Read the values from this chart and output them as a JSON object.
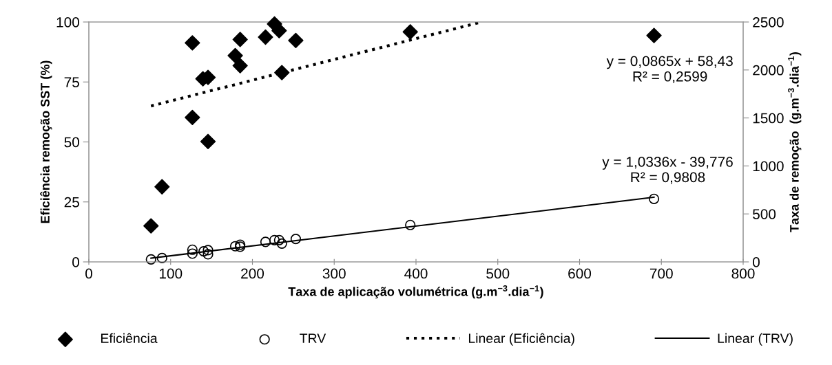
{
  "chart_data": {
    "type": "scatter",
    "xlabel": "Taxa de aplicação volumétrica (g.m$^{−3}$.dia$^{−1}$)",
    "ylabel": "Eficiência remoção SST (%)",
    "y2label": "Taxa de remoção  (g.m$^{−3}$.dia$^{−1}$)",
    "xlim": [
      0,
      800
    ],
    "xticks": [
      0,
      100,
      200,
      300,
      400,
      500,
      600,
      700,
      800
    ],
    "ylim": [
      0,
      100
    ],
    "yticks": [
      0,
      25,
      50,
      75,
      100
    ],
    "y2lim": [
      0,
      2500
    ],
    "y2ticks": [
      0,
      500,
      1000,
      1500,
      2000,
      2500
    ],
    "grid": false,
    "legend": "bottom",
    "series": [
      {
        "name": "Eficiência",
        "marker": "diamond",
        "color": "#000000",
        "x": [
          76,
          89.5,
          126.6,
          126.6,
          139.5,
          145.7,
          145.7,
          179,
          185,
          185,
          216,
          227,
          232.7,
          236,
          253,
          393,
          691
        ],
        "values": [
          15,
          31.3,
          91.3,
          60.2,
          76.3,
          76.9,
          50.2,
          86.0,
          92.7,
          81.8,
          93.7,
          99.2,
          96.4,
          78.9,
          92.3,
          95.9,
          94.4
        ]
      },
      {
        "name": "TRV",
        "marker": "circle",
        "axis": "y2",
        "color": "#000000",
        "x": [
          76,
          89.5,
          126.6,
          126.6,
          140.4,
          145.7,
          145.7,
          179,
          185,
          185,
          216,
          227,
          232.7,
          236,
          253,
          393,
          691
        ],
        "values": [
          26,
          40,
          127,
          86,
          110,
          122,
          79,
          163,
          179,
          158,
          208,
          227,
          227,
          191,
          239,
          385,
          657
        ]
      },
      {
        "name": "Linear (Eficiência)",
        "type": "line",
        "line_style": "dotted",
        "color": "#000000",
        "x": [
          76,
          480
        ],
        "values": [
          65.0,
          100.0
        ]
      },
      {
        "name": "Linear (TRV)",
        "type": "line",
        "line_style": "solid",
        "axis": "y2",
        "color": "#000000",
        "x": [
          76,
          691
        ],
        "values": [
          39,
          674
        ]
      }
    ],
    "annotations": [
      "y = 0,0865x + 58,43\nR² = 0,2599",
      "y = 1,0336x - 39,776\nR² = 0,9808"
    ]
  }
}
